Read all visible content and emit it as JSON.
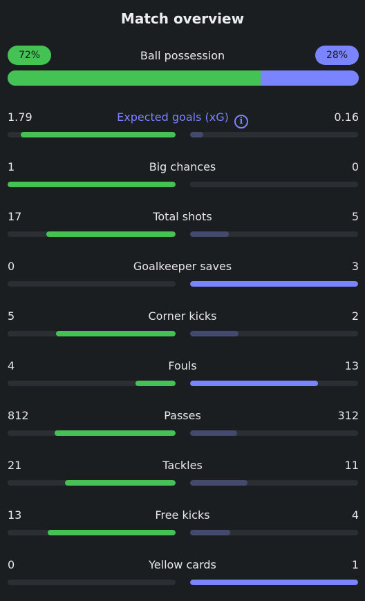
{
  "title": "Match overview",
  "possession": {
    "label": "Ball possession",
    "home": "72%",
    "away": "28%",
    "home_fraction": 0.72
  },
  "colors": {
    "home": "#44c354",
    "away": "#7b84ff",
    "away_muted": "#434a6e",
    "track": "#2b2f33",
    "background": "#1b1e21"
  },
  "stats": [
    {
      "label": "Expected goals (xG)",
      "home": "1.79",
      "away": "0.16",
      "home_fill": 0.92,
      "away_fill": 0.08,
      "accent": true,
      "info_icon": "info-icon"
    },
    {
      "label": "Big chances",
      "home": "1",
      "away": "0",
      "home_fill": 1.0,
      "away_fill": 0.0
    },
    {
      "label": "Total shots",
      "home": "17",
      "away": "5",
      "home_fill": 0.77,
      "away_fill": 0.23
    },
    {
      "label": "Goalkeeper saves",
      "home": "0",
      "away": "3",
      "home_fill": 0.0,
      "away_fill": 1.0
    },
    {
      "label": "Corner kicks",
      "home": "5",
      "away": "2",
      "home_fill": 0.71,
      "away_fill": 0.29
    },
    {
      "label": "Fouls",
      "home": "4",
      "away": "13",
      "home_fill": 0.24,
      "away_fill": 0.76
    },
    {
      "label": "Passes",
      "home": "812",
      "away": "312",
      "home_fill": 0.72,
      "away_fill": 0.28
    },
    {
      "label": "Tackles",
      "home": "21",
      "away": "11",
      "home_fill": 0.66,
      "away_fill": 0.34
    },
    {
      "label": "Free kicks",
      "home": "13",
      "away": "4",
      "home_fill": 0.76,
      "away_fill": 0.24
    },
    {
      "label": "Yellow cards",
      "home": "0",
      "away": "1",
      "home_fill": 0.0,
      "away_fill": 1.0
    }
  ]
}
